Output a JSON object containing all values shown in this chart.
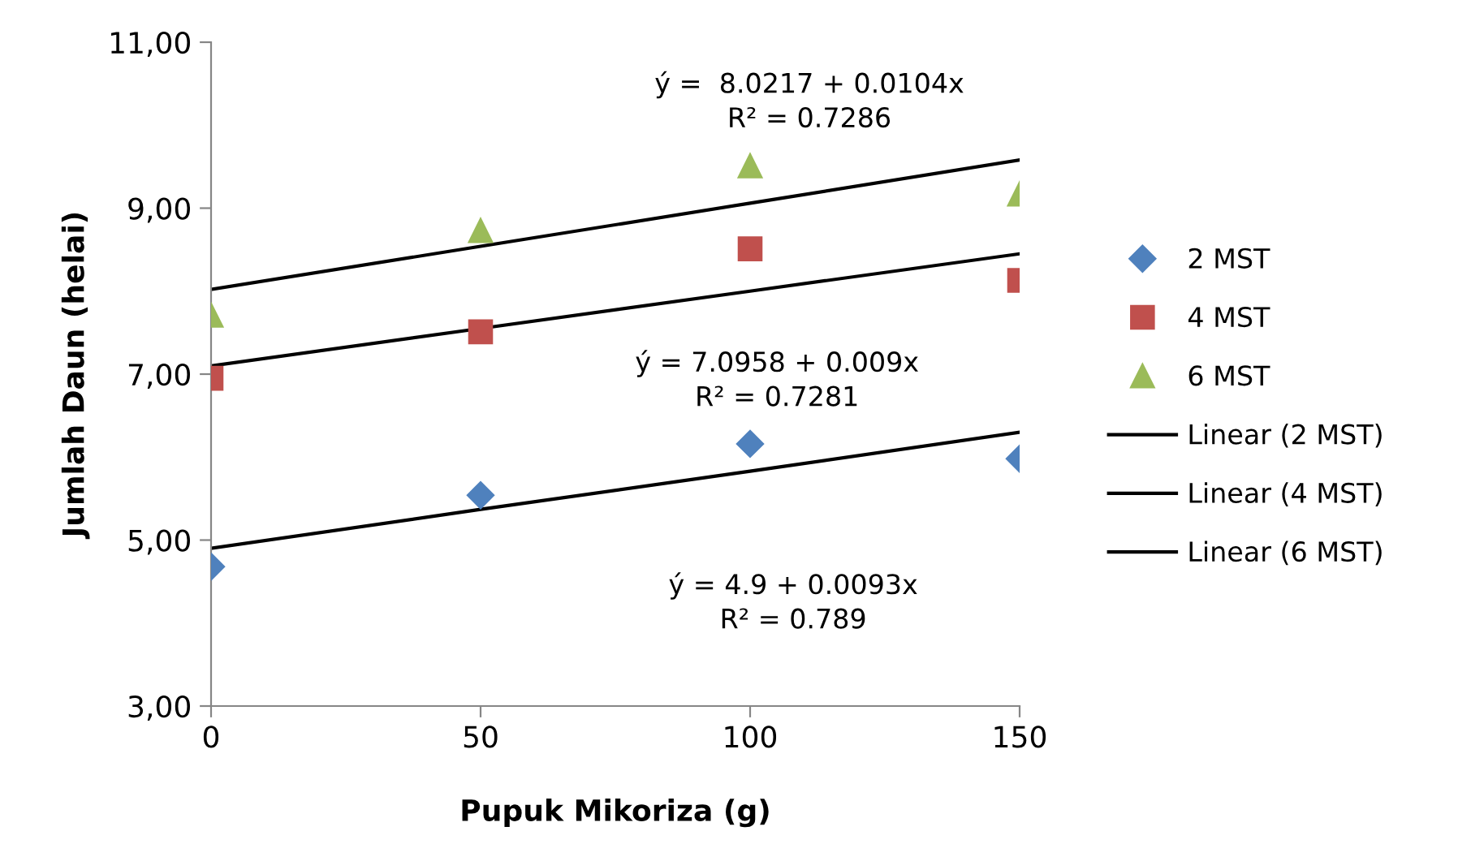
{
  "chart_data": {
    "type": "scatter",
    "xlabel": "Pupuk Mikoriza (g)",
    "ylabel": "Jumlah Daun (helai)",
    "x": [
      0,
      50,
      100,
      150
    ],
    "series": [
      {
        "name": "2 MST",
        "color": "#4f81bd",
        "marker": "diamond",
        "values": [
          4.68,
          5.54,
          6.16,
          5.98
        ]
      },
      {
        "name": "4 MST",
        "color": "#c0504d",
        "marker": "square",
        "values": [
          6.95,
          7.51,
          8.51,
          8.13
        ]
      },
      {
        "name": "6 MST",
        "color": "#9bbb59",
        "marker": "triangle",
        "values": [
          7.71,
          8.73,
          9.51,
          9.17
        ]
      },
      {
        "name": "Linear (2 MST)",
        "type": "line",
        "color": "#000000",
        "values": [
          4.9,
          5.37,
          5.83,
          6.3
        ]
      },
      {
        "name": "Linear (4 MST)",
        "type": "line",
        "color": "#000000",
        "values": [
          7.1,
          7.55,
          8.0,
          8.45
        ]
      },
      {
        "name": "Linear (6 MST)",
        "type": "line",
        "color": "#000000",
        "values": [
          8.02,
          8.54,
          9.06,
          9.58
        ]
      }
    ],
    "annotations": [
      "ý =  8.0217 + 0.0104x\nR² = 0.7286",
      "ý = 7.0958 + 0.009x\nR² = 0.7281",
      "ý = 4.9 + 0.0093x\nR² = 0.789"
    ],
    "xlim": [
      0,
      150
    ],
    "xticks": [
      0,
      50,
      100,
      150
    ],
    "ylim": [
      3,
      11
    ],
    "yticks": [
      {
        "value": 3,
        "label": "3,00"
      },
      {
        "value": 5,
        "label": "5,00"
      },
      {
        "value": 7,
        "label": "7,00"
      },
      {
        "value": 9,
        "label": "9,00"
      },
      {
        "value": 11,
        "label": "11,00"
      }
    ],
    "grid": false,
    "legend": "right"
  }
}
